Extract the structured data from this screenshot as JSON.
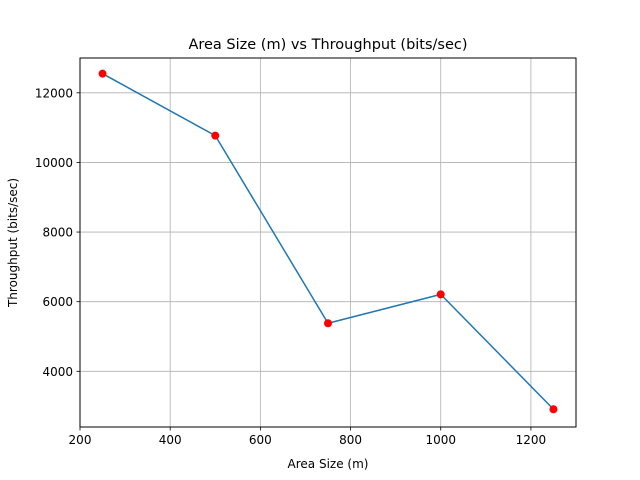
{
  "chart_data": {
    "type": "line",
    "title": "Area Size (m) vs Throughput (bits/sec)",
    "xlabel": "Area Size (m)",
    "ylabel": "Throughput (bits/sec)",
    "xlim": [
      200,
      1300
    ],
    "ylim": [
      2400,
      13000
    ],
    "x_ticks": [
      200,
      400,
      600,
      800,
      1000,
      1200
    ],
    "y_ticks": [
      4000,
      6000,
      8000,
      10000,
      12000
    ],
    "grid": true,
    "series": [
      {
        "x": [
          250,
          500,
          750,
          1000,
          1250
        ],
        "values": [
          12550,
          10770,
          5380,
          6210,
          2910
        ],
        "line_color": "#1f77b4",
        "marker_color": "#ff0000"
      }
    ]
  }
}
